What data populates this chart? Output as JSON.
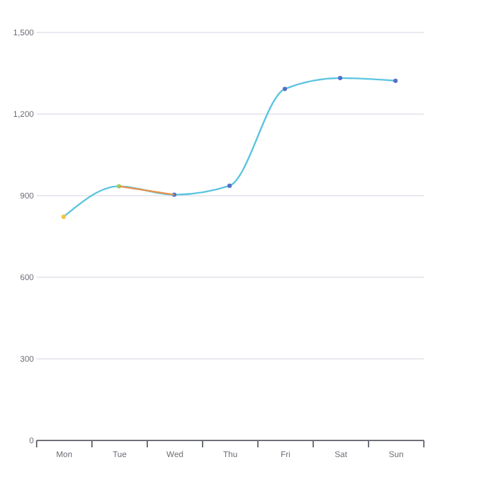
{
  "chart_data": {
    "type": "line",
    "categories": [
      "Mon",
      "Tue",
      "Wed",
      "Thu",
      "Fri",
      "Sat",
      "Sun"
    ],
    "series": [
      {
        "color": "#5bc4e0",
        "colors": [
          "#f5c242",
          "#9bd65a",
          "#5470c6",
          "#5470c6",
          "#5470c6",
          "#5470c6",
          "#5470c6"
        ],
        "values": [
          820,
          932,
          901,
          934,
          1290,
          1330,
          1320
        ]
      },
      {
        "color": "#e8914a",
        "values": [
          null,
          932,
          901,
          null,
          null,
          null,
          null
        ],
        "marker": "none"
      }
    ],
    "ylim": [
      0,
      1500
    ],
    "yticks": [
      0,
      300,
      600,
      900,
      {
        "value": 1200,
        "label": "1,200"
      },
      {
        "value": 1500,
        "label": "1,500"
      }
    ],
    "grid": "y",
    "marker": "circle"
  }
}
